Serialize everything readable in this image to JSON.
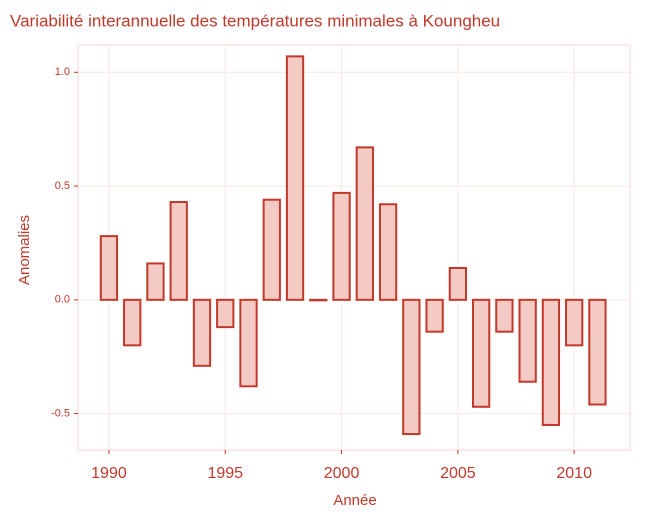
{
  "chart_data": {
    "type": "bar",
    "title": "Variabilité interannuelle des températures minimales à Koungheu",
    "xlabel": "Année",
    "ylabel": "Anomalies",
    "x": [
      1990,
      1991,
      1992,
      1993,
      1994,
      1995,
      1996,
      1997,
      1998,
      1999,
      2000,
      2001,
      2002,
      2003,
      2004,
      2005,
      2006,
      2007,
      2008,
      2009,
      2010,
      2011
    ],
    "values": [
      0.28,
      -0.2,
      0.16,
      0.43,
      -0.29,
      -0.12,
      -0.38,
      0.44,
      1.07,
      0.0,
      0.47,
      0.67,
      0.42,
      -0.59,
      -0.14,
      0.14,
      -0.47,
      -0.14,
      -0.36,
      -0.55,
      -0.2,
      -0.46
    ],
    "color": "#f4cac5",
    "edgecolor": "#c0392b",
    "xlim": [
      1988.67,
      2012.4
    ],
    "xticks": [
      1990,
      1995,
      2000,
      2005,
      2010
    ],
    "ylim": [
      -0.66,
      1.12
    ],
    "yticks": [
      -0.5,
      {
        "value": 0,
        "label": "0.0"
      },
      0.5,
      {
        "value": 1,
        "label": "1.0"
      }
    ],
    "grid": true
  }
}
